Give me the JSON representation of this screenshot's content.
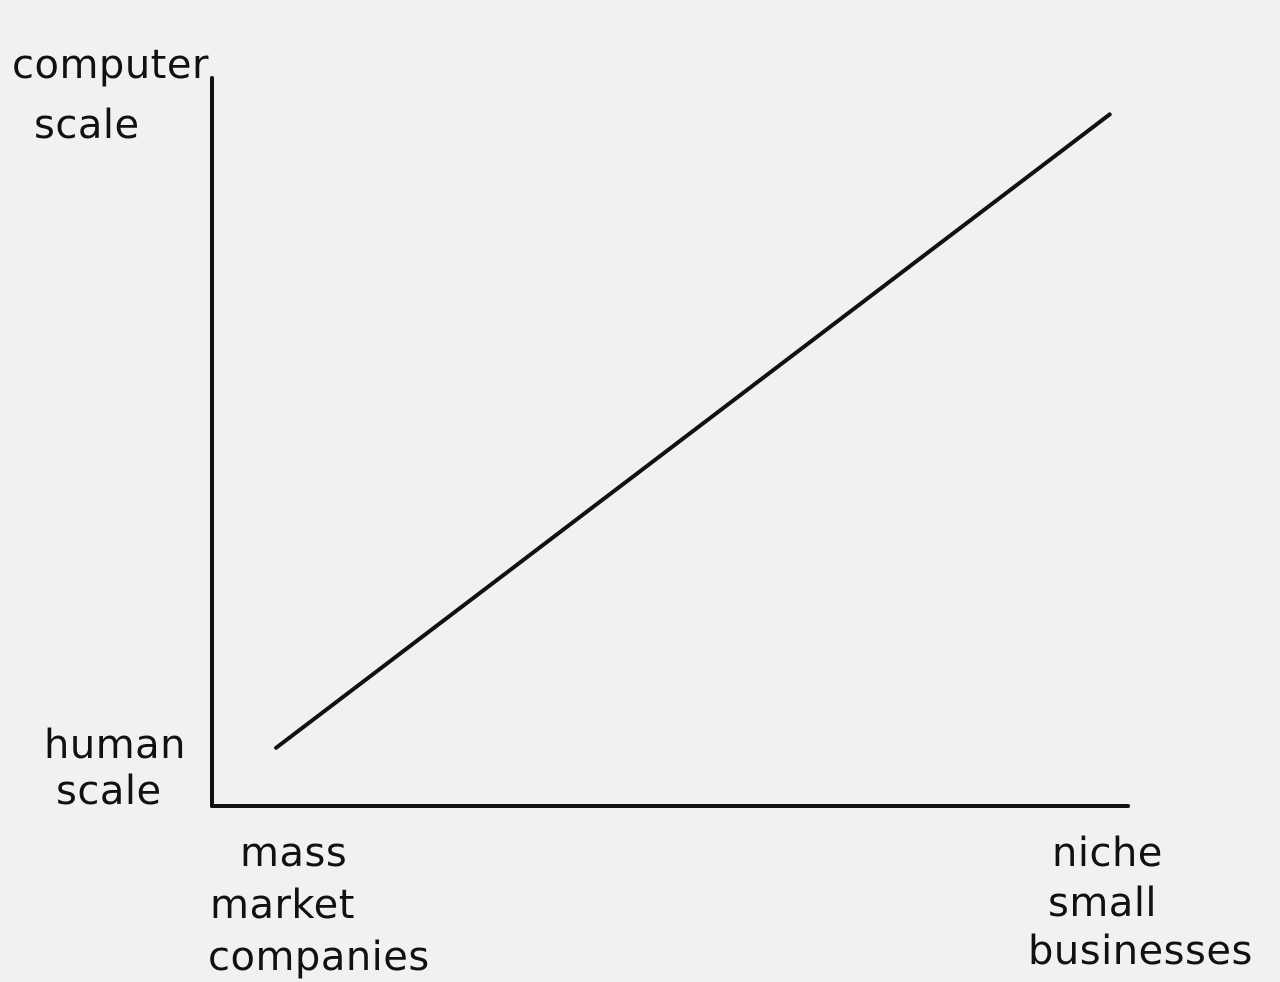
{
  "chart_data": {
    "type": "line",
    "title": "",
    "x_axis": {
      "low_label": [
        "mass",
        "market",
        "companies"
      ],
      "high_label": [
        "niche",
        "small",
        "businesses"
      ]
    },
    "y_axis": {
      "high_label": [
        "computer",
        "scale"
      ],
      "low_label": [
        "human",
        "scale"
      ]
    },
    "xlim": [
      0,
      1
    ],
    "ylim": [
      0,
      1
    ],
    "grid": false,
    "series": [
      {
        "points": [
          {
            "x": 0.07,
            "y": 0.08
          },
          {
            "x": 0.98,
            "y": 0.95
          }
        ]
      }
    ]
  },
  "colors": {
    "background": "#f1f1f1",
    "ink": "#111111"
  }
}
